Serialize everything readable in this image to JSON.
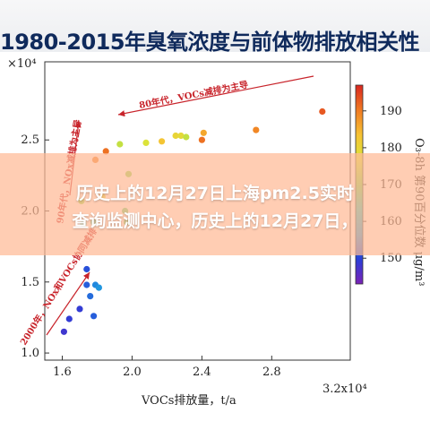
{
  "figure_title": "1980-2015年臭氧浓度与前体物排放相关性",
  "overlay": {
    "line1": "历史上的12月27日上海pm2.5实时",
    "line2": "查询监测中心，历史上的12月27日，"
  },
  "chart_data": {
    "type": "scatter",
    "title": "1980-2015年臭氧浓度与前体物排放相关性",
    "xlabel": "VOCs排放量，t/a",
    "ylabel": "",
    "x_multiplier": "3.2x10⁴",
    "y_multiplier": "×10⁴",
    "xlim": [
      1.5,
      3.25
    ],
    "ylim": [
      0.95,
      3.05
    ],
    "xticks": [
      "1.6",
      "2.0",
      "2.4",
      "2.8"
    ],
    "yticks": [
      "1.0",
      "1.5",
      "2.0",
      "2.5"
    ],
    "x_multiplier_position": "end of x axis",
    "y_multiplier_position": "top of y axis",
    "colorbar": {
      "label": "O₃-8h 第90百分位数 μg/m³",
      "range": [
        143,
        197
      ],
      "ticks": [
        "150",
        "160",
        "170",
        "180",
        "190"
      ],
      "colors": [
        "#7a22b6",
        "#2a3fd8",
        "#1f9de0",
        "#33c9c4",
        "#7fd65a",
        "#dbe43a",
        "#f6c233",
        "#f07a22",
        "#d9261f"
      ]
    },
    "points": [
      {
        "x": 1.61,
        "y": 1.15,
        "c": 148
      },
      {
        "x": 1.64,
        "y": 1.24,
        "c": 149
      },
      {
        "x": 1.7,
        "y": 1.31,
        "c": 149
      },
      {
        "x": 1.78,
        "y": 1.26,
        "c": 152
      },
      {
        "x": 1.76,
        "y": 1.4,
        "c": 153
      },
      {
        "x": 1.74,
        "y": 1.48,
        "c": 152
      },
      {
        "x": 1.79,
        "y": 1.48,
        "c": 155
      },
      {
        "x": 1.74,
        "y": 1.59,
        "c": 151
      },
      {
        "x": 1.81,
        "y": 1.46,
        "c": 156
      },
      {
        "x": 1.72,
        "y": 1.91,
        "c": 165
      },
      {
        "x": 1.78,
        "y": 1.92,
        "c": 166
      },
      {
        "x": 1.97,
        "y": 1.92,
        "c": 168
      },
      {
        "x": 1.71,
        "y": 2.07,
        "c": 172
      },
      {
        "x": 1.83,
        "y": 2.1,
        "c": 178
      },
      {
        "x": 1.98,
        "y": 2.26,
        "c": 171
      },
      {
        "x": 1.79,
        "y": 2.36,
        "c": 190
      },
      {
        "x": 1.85,
        "y": 2.42,
        "c": 191
      },
      {
        "x": 1.93,
        "y": 2.47,
        "c": 175
      },
      {
        "x": 2.08,
        "y": 2.48,
        "c": 177
      },
      {
        "x": 2.17,
        "y": 2.49,
        "c": 183
      },
      {
        "x": 2.25,
        "y": 2.53,
        "c": 180
      },
      {
        "x": 2.28,
        "y": 2.53,
        "c": 179
      },
      {
        "x": 2.31,
        "y": 2.52,
        "c": 175
      },
      {
        "x": 2.41,
        "y": 2.55,
        "c": 186
      },
      {
        "x": 2.71,
        "y": 2.57,
        "c": 189
      },
      {
        "x": 3.09,
        "y": 2.7,
        "c": 193
      },
      {
        "x": 2.4,
        "y": 2.5,
        "c": 191
      },
      {
        "x": 1.96,
        "y": 2.0,
        "c": 168
      }
    ],
    "annotations": {
      "era_1980": "80年代，VOCs减排为主导",
      "era_1990": "90年代，NOx减排为主导",
      "era_2000": "2000年，NOx和VOCs协同减排"
    }
  }
}
